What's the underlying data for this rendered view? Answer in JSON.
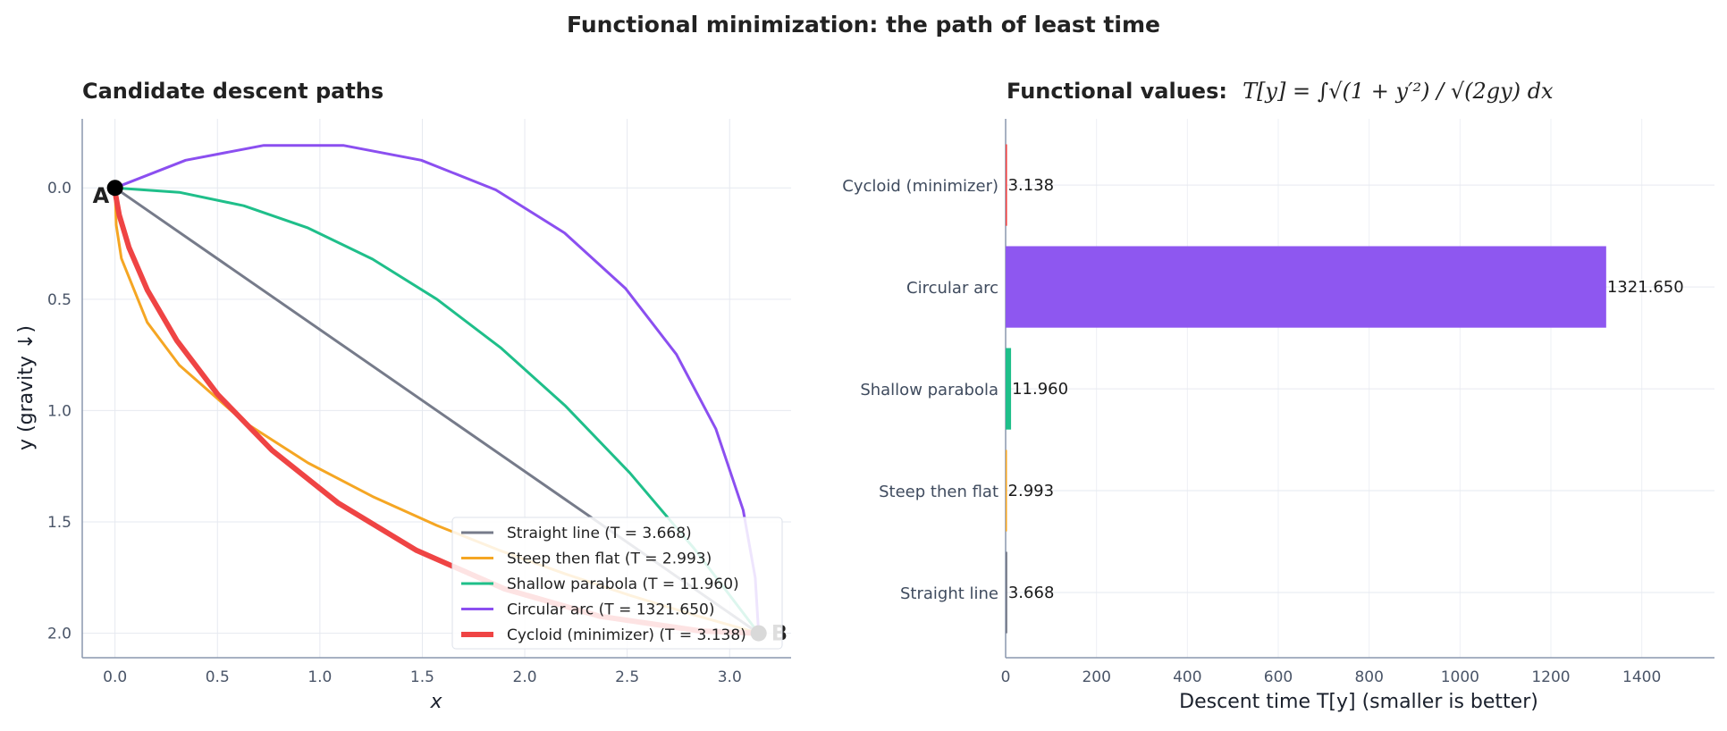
{
  "title": "Functional minimization: the path of least time",
  "chart_data": [
    {
      "type": "line",
      "title": "Candidate descent paths",
      "xlabel": "x",
      "ylabel": "y  (gravity ↓)",
      "xlim": [
        -0.16,
        3.3
      ],
      "ylim": [
        2.11,
        -0.31
      ],
      "y_inverted": true,
      "xticks": [
        "0.0",
        "0.5",
        "1.0",
        "1.5",
        "2.0",
        "2.5",
        "3.0"
      ],
      "yticks": [
        "0.0",
        "0.5",
        "1.0",
        "1.5",
        "2.0"
      ],
      "grid": true,
      "legend_position": "lower-right",
      "points": [
        {
          "label": "A",
          "x": 0,
          "y": 0
        },
        {
          "label": "B",
          "x": 3.1416,
          "y": 2
        }
      ],
      "series": [
        {
          "name": "Straight line  (T = 3.668)",
          "color": "#767b8a",
          "width": 3,
          "points": [
            [
              0,
              0
            ],
            [
              3.1416,
              2
            ]
          ]
        },
        {
          "name": "Steep then flat  (T = 2.993)",
          "color": "#f5a623",
          "width": 3,
          "points": [
            [
              0,
              0
            ],
            [
              0.006,
              0.166
            ],
            [
              0.031,
              0.317
            ],
            [
              0.157,
              0.604
            ],
            [
              0.314,
              0.796
            ],
            [
              0.628,
              1.05
            ],
            [
              0.942,
              1.235
            ],
            [
              1.257,
              1.386
            ],
            [
              1.571,
              1.516
            ],
            [
              1.885,
              1.631
            ],
            [
              2.199,
              1.734
            ],
            [
              2.513,
              1.83
            ],
            [
              2.827,
              1.918
            ],
            [
              3.1416,
              2
            ]
          ]
        },
        {
          "name": "Shallow parabola  (T = 11.960)",
          "color": "#1fbf8a",
          "width": 3,
          "points": [
            [
              0,
              0
            ],
            [
              0.314,
              0.02
            ],
            [
              0.628,
              0.08
            ],
            [
              0.942,
              0.18
            ],
            [
              1.257,
              0.32
            ],
            [
              1.571,
              0.5
            ],
            [
              1.885,
              0.72
            ],
            [
              2.199,
              0.98
            ],
            [
              2.513,
              1.28
            ],
            [
              2.827,
              1.62
            ],
            [
              3.1416,
              2
            ]
          ]
        },
        {
          "name": "Circular arc  (T = 1321.650)",
          "color": "#8b4ff0",
          "width": 3,
          "points": [
            [
              0,
              0
            ],
            [
              0.345,
              -0.124
            ],
            [
              0.726,
              -0.191
            ],
            [
              1.114,
              -0.191
            ],
            [
              1.495,
              -0.124
            ],
            [
              1.859,
              0.009
            ],
            [
              2.194,
              0.202
            ],
            [
              2.491,
              0.451
            ],
            [
              2.74,
              0.748
            ],
            [
              2.933,
              1.083
            ],
            [
              3.066,
              1.447
            ],
            [
              3.125,
              1.751
            ],
            [
              3.1416,
              2
            ]
          ]
        },
        {
          "name": "Cycloid (minimizer)  (T = 3.138)",
          "color": "#ef4444",
          "width": 6,
          "points": [
            [
              0,
              0
            ],
            [
              0.0002,
              0.005
            ],
            [
              0.0026,
              0.031
            ],
            [
              0.0206,
              0.122
            ],
            [
              0.0684,
              0.268
            ],
            [
              0.1585,
              0.46
            ],
            [
              0.301,
              0.685
            ],
            [
              0.5025,
              0.929
            ],
            [
              0.766,
              1.178
            ],
            [
              1.0907,
              1.416
            ],
            [
              1.4719,
              1.628
            ],
            [
              1.9015,
              1.801
            ],
            [
              2.3683,
              1.924
            ],
            [
              2.8589,
              1.99
            ],
            [
              3.1416,
              2
            ]
          ]
        }
      ]
    },
    {
      "type": "bar",
      "orientation": "horizontal",
      "title": "Functional values:",
      "title_formula": "T[y] = ∫√(1 + y′²) / √(2gy) dx",
      "xlabel": "Descent time T[y]  (smaller is better)",
      "xlim": [
        0,
        1560
      ],
      "xticks": [
        "0",
        "200",
        "400",
        "600",
        "800",
        "1000",
        "1200",
        "1400"
      ],
      "grid": true,
      "categories": [
        "Straight line",
        "Steep then flat",
        "Shallow parabola",
        "Circular arc",
        "Cycloid (minimizer)"
      ],
      "values": [
        3.668,
        2.993,
        11.96,
        1321.65,
        3.138
      ],
      "labels": [
        "3.668",
        "2.993",
        "11.960",
        "1321.650",
        "3.138"
      ],
      "colors": [
        "#767b8a",
        "#f5a623",
        "#1fbf8a",
        "#8e57f0",
        "#ef4444"
      ]
    }
  ]
}
